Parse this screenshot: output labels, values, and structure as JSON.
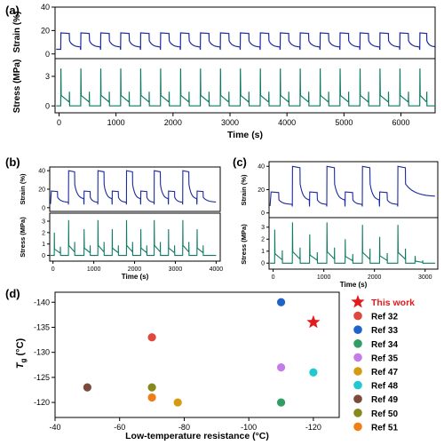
{
  "colors": {
    "strain": "#1b2a9e",
    "stress": "#0f7a63",
    "frame": "#000000",
    "grid": "#dddddd",
    "star": "#e31a1c"
  },
  "chart_data": [
    {
      "panel": "(a)",
      "type": "line",
      "x": {
        "label": "Time (s)",
        "min": -70,
        "max": 6600,
        "ticks": [
          0,
          1000,
          2000,
          3000,
          4000,
          5000,
          6000
        ]
      },
      "strain": {
        "label": "Strain (%)",
        "ylim": [
          -4,
          40
        ],
        "yticks": [
          0,
          20,
          40
        ],
        "cycles": [
          {
            "t": 30,
            "peak": 18
          },
          {
            "t": 380,
            "peak": 18
          },
          {
            "t": 730,
            "peak": 18
          },
          {
            "t": 1080,
            "peak": 18
          },
          {
            "t": 1430,
            "peak": 18
          },
          {
            "t": 1780,
            "peak": 18
          },
          {
            "t": 2130,
            "peak": 18
          },
          {
            "t": 2480,
            "peak": 18
          },
          {
            "t": 2830,
            "peak": 18
          },
          {
            "t": 3180,
            "peak": 18
          },
          {
            "t": 3530,
            "peak": 18
          },
          {
            "t": 3880,
            "peak": 18
          },
          {
            "t": 4230,
            "peak": 18
          },
          {
            "t": 4580,
            "peak": 18
          },
          {
            "t": 4930,
            "peak": 18
          },
          {
            "t": 5280,
            "peak": 18
          },
          {
            "t": 5630,
            "peak": 18
          },
          {
            "t": 5980,
            "peak": 18
          },
          {
            "t": 6330,
            "peak": 18
          }
        ],
        "baseline": 4,
        "tail_end": 6600,
        "tail_value": 6
      },
      "stress": {
        "label": "Stress (MPa)",
        "ylim": [
          -0.7,
          4.8
        ],
        "yticks": [
          0,
          3
        ],
        "cycles": [
          {
            "t": 30,
            "peak": 3.8
          },
          {
            "t": 380,
            "peak": 3.8
          },
          {
            "t": 730,
            "peak": 3.8
          },
          {
            "t": 1080,
            "peak": 3.8
          },
          {
            "t": 1430,
            "peak": 3.8
          },
          {
            "t": 1780,
            "peak": 3.8
          },
          {
            "t": 2130,
            "peak": 3.8
          },
          {
            "t": 2480,
            "peak": 3.8
          },
          {
            "t": 2830,
            "peak": 3.8
          },
          {
            "t": 3180,
            "peak": 3.8
          },
          {
            "t": 3530,
            "peak": 3.8
          },
          {
            "t": 3880,
            "peak": 3.8
          },
          {
            "t": 4230,
            "peak": 3.8
          },
          {
            "t": 4580,
            "peak": 3.8
          },
          {
            "t": 4930,
            "peak": 3.8
          },
          {
            "t": 5280,
            "peak": 3.8
          },
          {
            "t": 5630,
            "peak": 3.8
          },
          {
            "t": 5980,
            "peak": 3.8
          },
          {
            "t": 6330,
            "peak": 3.8
          }
        ],
        "tail_end": 6600
      }
    },
    {
      "panel": "(b)",
      "type": "line",
      "x": {
        "label": "Time (s)",
        "min": -80,
        "max": 4100,
        "ticks": [
          0,
          1000,
          2000,
          3000,
          4000
        ]
      },
      "strain": {
        "label": "Strain (%)",
        "ylim": [
          -4,
          44
        ],
        "yticks": [
          0,
          20,
          40
        ],
        "cycles": [
          {
            "t": -40,
            "peak": 18,
            "start": 18
          },
          {
            "t": 380,
            "peak": 40
          },
          {
            "t": 760,
            "peak": 18
          },
          {
            "t": 1100,
            "peak": 40
          },
          {
            "t": 1450,
            "peak": 18
          },
          {
            "t": 1800,
            "peak": 40
          },
          {
            "t": 2150,
            "peak": 18
          },
          {
            "t": 2480,
            "peak": 40
          },
          {
            "t": 2830,
            "peak": 18
          },
          {
            "t": 3180,
            "peak": 40
          },
          {
            "t": 3530,
            "peak": 18
          }
        ],
        "baseline": 4,
        "tail_end": 4000,
        "tail_value": 6
      },
      "stress": {
        "label": "Stress (MPa)",
        "ylim": [
          -0.5,
          3.7
        ],
        "yticks": [
          0,
          1,
          2,
          3
        ],
        "cycles": [
          {
            "t": 30,
            "peak": 2.0
          },
          {
            "t": 380,
            "peak": 3.1
          },
          {
            "t": 760,
            "peak": 2.3
          },
          {
            "t": 1100,
            "peak": 3.1
          },
          {
            "t": 1450,
            "peak": 2.3
          },
          {
            "t": 1800,
            "peak": 3.1
          },
          {
            "t": 2150,
            "peak": 2.3
          },
          {
            "t": 2480,
            "peak": 3.1
          },
          {
            "t": 2830,
            "peak": 2.3
          },
          {
            "t": 3180,
            "peak": 3.1
          },
          {
            "t": 3530,
            "peak": 2.3
          }
        ],
        "tail_end": 4000
      }
    },
    {
      "panel": "(c)",
      "type": "line",
      "x": {
        "label": "Time (s)",
        "min": -80,
        "max": 3250,
        "ticks": [
          0,
          1000,
          2000,
          3000
        ]
      },
      "strain": {
        "label": "Strain (%)",
        "ylim": [
          -4,
          44
        ],
        "yticks": [
          0,
          20,
          40
        ],
        "cycles": [
          {
            "t": -40,
            "peak": 18,
            "start": 18
          },
          {
            "t": 380,
            "peak": 40
          },
          {
            "t": 720,
            "peak": 18
          },
          {
            "t": 1060,
            "peak": 40
          },
          {
            "t": 1420,
            "peak": 18
          },
          {
            "t": 1760,
            "peak": 40
          },
          {
            "t": 2100,
            "peak": 18
          },
          {
            "t": 2460,
            "peak": 40
          }
        ],
        "baseline": 6,
        "tail_end": 3200,
        "tail_value": 14
      },
      "stress": {
        "label": "Stress (MPa)",
        "ylim": [
          -0.5,
          3.8
        ],
        "yticks": [
          0,
          1,
          2,
          3
        ],
        "cycles": [
          {
            "t": 30,
            "peak": 2.8
          },
          {
            "t": 380,
            "peak": 3.4
          },
          {
            "t": 720,
            "peak": 2.4
          },
          {
            "t": 1060,
            "peak": 3.4
          },
          {
            "t": 1420,
            "peak": 2.0
          },
          {
            "t": 1760,
            "peak": 3.2
          },
          {
            "t": 2100,
            "peak": 2.2
          },
          {
            "t": 2460,
            "peak": 3.2
          },
          {
            "t": 2800,
            "peak": 0.6
          }
        ],
        "tail_end": 3200
      }
    },
    {
      "panel": "(d)",
      "type": "scatter",
      "xlabel": "Low-temperature resistance (°C)",
      "ylabel_main": "T",
      "ylabel_sub": "g",
      "ylabel_unit": " (°C)",
      "xlim": [
        -40,
        -128
      ],
      "ylim": [
        -117,
        -142
      ],
      "xticks": [
        -40,
        -60,
        -80,
        -100,
        -120
      ],
      "yticks": [
        -120,
        -125,
        -130,
        -135,
        -140
      ],
      "series": [
        {
          "name": "This work",
          "x": -120,
          "y": -136,
          "color": "#e31a1c",
          "marker": "star"
        },
        {
          "name": "Ref 32",
          "x": -70,
          "y": -133,
          "color": "#e0473d",
          "marker": "circle"
        },
        {
          "name": "Ref 33",
          "x": -110,
          "y": -140,
          "color": "#1f62cc",
          "marker": "circle"
        },
        {
          "name": "Ref 34",
          "x": -110,
          "y": -120,
          "color": "#2f9e63",
          "marker": "circle"
        },
        {
          "name": "Ref 35",
          "x": -110,
          "y": -127,
          "color": "#c47de8",
          "marker": "circle"
        },
        {
          "name": "Ref 47",
          "x": -78,
          "y": -120,
          "color": "#d49a12",
          "marker": "circle"
        },
        {
          "name": "Ref 48",
          "x": -120,
          "y": -126,
          "color": "#20c8cf",
          "marker": "circle"
        },
        {
          "name": "Ref 49",
          "x": -50,
          "y": -123,
          "color": "#7b4a3a",
          "marker": "circle"
        },
        {
          "name": "Ref 50",
          "x": -70,
          "y": -123,
          "color": "#868a1c",
          "marker": "circle"
        },
        {
          "name": "Ref 51",
          "x": -70,
          "y": -121,
          "color": "#f07e18",
          "marker": "circle"
        }
      ]
    }
  ]
}
